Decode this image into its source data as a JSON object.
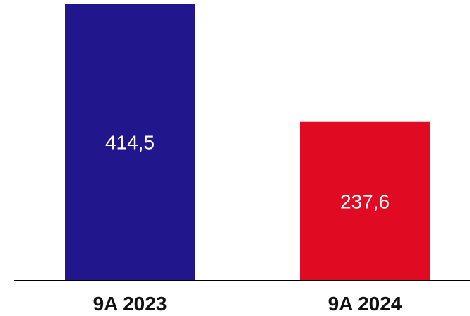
{
  "chart_data": {
    "type": "bar",
    "categories": [
      "9A 2023",
      "9A 2024"
    ],
    "values": [
      414.5,
      237.6
    ],
    "value_labels": [
      "414,5",
      "237,6"
    ],
    "colors": [
      "#22168d",
      "#e00b22"
    ],
    "data_label_color": "#ffffff",
    "axis_color": "#000000",
    "title": "",
    "xlabel": "",
    "ylabel": "",
    "grid": false,
    "legend": "none"
  }
}
